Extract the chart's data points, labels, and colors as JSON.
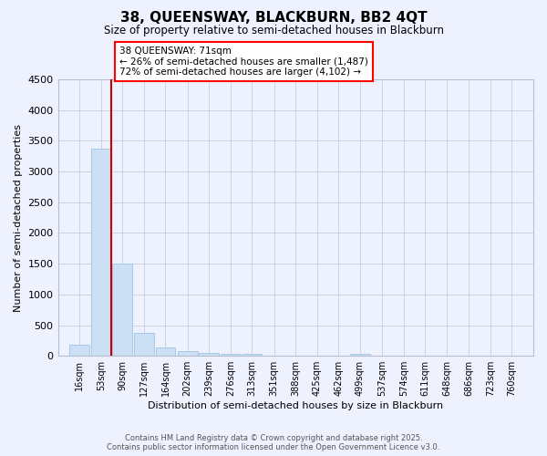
{
  "title": "38, QUEENSWAY, BLACKBURN, BB2 4QT",
  "subtitle": "Size of property relative to semi-detached houses in Blackburn",
  "xlabel": "Distribution of semi-detached houses by size in Blackburn",
  "ylabel": "Number of semi-detached properties",
  "footer_line1": "Contains HM Land Registry data © Crown copyright and database right 2025.",
  "footer_line2": "Contains public sector information licensed under the Open Government Licence v3.0.",
  "annotation_line1": "38 QUEENSWAY: 71sqm",
  "annotation_line2": "← 26% of semi-detached houses are smaller (1,487)",
  "annotation_line3": "72% of semi-detached houses are larger (4,102) →",
  "property_size": 71,
  "bar_color": "#cce0f5",
  "bar_edge_color": "#a8c8e8",
  "vline_color": "#cc0000",
  "background_color": "#eef2ff",
  "grid_color": "#c8cce0",
  "categories": [
    "16sqm",
    "53sqm",
    "90sqm",
    "127sqm",
    "164sqm",
    "202sqm",
    "239sqm",
    "276sqm",
    "313sqm",
    "351sqm",
    "388sqm",
    "425sqm",
    "462sqm",
    "499sqm",
    "537sqm",
    "574sqm",
    "611sqm",
    "648sqm",
    "686sqm",
    "723sqm",
    "760sqm"
  ],
  "bin_edges": [
    16,
    53,
    90,
    127,
    164,
    202,
    239,
    276,
    313,
    351,
    388,
    425,
    462,
    499,
    537,
    574,
    611,
    648,
    686,
    723,
    760
  ],
  "values": [
    180,
    3370,
    1500,
    370,
    135,
    75,
    55,
    40,
    30,
    0,
    0,
    0,
    0,
    30,
    0,
    0,
    0,
    0,
    0,
    0,
    0
  ],
  "ylim": [
    0,
    4500
  ],
  "yticks": [
    0,
    500,
    1000,
    1500,
    2000,
    2500,
    3000,
    3500,
    4000,
    4500
  ]
}
